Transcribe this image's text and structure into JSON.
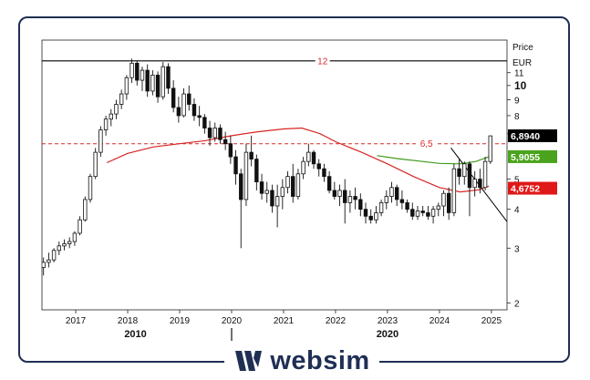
{
  "chart_data": {
    "type": "candlestick",
    "y_axis": {
      "label_top": "Price",
      "unit": "EUR",
      "scale": "log",
      "ylim": [
        1.9,
        14.0
      ],
      "ticks": [
        2,
        3,
        4,
        5,
        7,
        8,
        9,
        10,
        11
      ],
      "bold_tick": 10
    },
    "x_axis": {
      "year_ticks": [
        "2017",
        "2018",
        "2019",
        "2020",
        "2021",
        "2022",
        "2023",
        "2024",
        "2025"
      ],
      "decade_labels": [
        "2010",
        "2020"
      ],
      "xlim": [
        2016.35,
        2025.3
      ]
    },
    "reference_lines": [
      {
        "label": "12",
        "value": 12.0,
        "color": "#000000",
        "style": "solid"
      },
      {
        "label": "6,5",
        "value": 6.5,
        "color": "#d92a2a",
        "style": "dashed"
      }
    ],
    "price_badges": [
      {
        "label": "6,8940",
        "value": 6.894,
        "color": "#000000",
        "text_color": "#ffffff"
      },
      {
        "label": "5,9055",
        "value": 5.9055,
        "color": "#4aa31c",
        "text_color": "#ffffff"
      },
      {
        "label": "4,6752",
        "value": 4.6752,
        "color": "#e01818",
        "text_color": "#ffffff"
      }
    ],
    "series": [
      {
        "kind": "moving_average_long",
        "color": "#d82525",
        "points": [
          [
            2017.6,
            5.65
          ],
          [
            2018.0,
            6.05
          ],
          [
            2018.5,
            6.35
          ],
          [
            2019.0,
            6.5
          ],
          [
            2019.5,
            6.65
          ],
          [
            2020.0,
            6.9
          ],
          [
            2020.5,
            7.1
          ],
          [
            2021.0,
            7.25
          ],
          [
            2021.35,
            7.3
          ],
          [
            2021.7,
            7.0
          ],
          [
            2022.0,
            6.6
          ],
          [
            2022.5,
            6.1
          ],
          [
            2023.0,
            5.6
          ],
          [
            2023.5,
            5.1
          ],
          [
            2024.0,
            4.7
          ],
          [
            2024.4,
            4.55
          ],
          [
            2024.75,
            4.62
          ],
          [
            2024.95,
            4.75
          ]
        ]
      },
      {
        "kind": "moving_average_short",
        "color": "#3f9a1a",
        "points": [
          [
            2022.8,
            5.95
          ],
          [
            2023.2,
            5.82
          ],
          [
            2023.6,
            5.72
          ],
          [
            2024.0,
            5.62
          ],
          [
            2024.4,
            5.6
          ],
          [
            2024.7,
            5.7
          ],
          [
            2024.95,
            5.9
          ]
        ]
      },
      {
        "kind": "trendline",
        "color": "#000000",
        "points": [
          [
            2024.22,
            6.3
          ],
          [
            2025.3,
            3.65
          ]
        ]
      }
    ],
    "candles": [
      [
        2016.38,
        2.6,
        2.8,
        2.45,
        2.7
      ],
      [
        2016.48,
        2.7,
        2.9,
        2.6,
        2.75
      ],
      [
        2016.58,
        2.75,
        3.0,
        2.7,
        2.95
      ],
      [
        2016.68,
        2.95,
        3.15,
        2.85,
        3.05
      ],
      [
        2016.78,
        3.05,
        3.2,
        2.95,
        3.1
      ],
      [
        2016.88,
        3.1,
        3.25,
        3.0,
        3.15
      ],
      [
        2016.98,
        3.15,
        3.4,
        3.05,
        3.35
      ],
      [
        2017.08,
        3.35,
        3.8,
        3.3,
        3.7
      ],
      [
        2017.18,
        3.7,
        4.4,
        3.65,
        4.3
      ],
      [
        2017.28,
        4.3,
        5.2,
        4.2,
        5.1
      ],
      [
        2017.38,
        5.1,
        6.3,
        5.0,
        6.1
      ],
      [
        2017.48,
        6.1,
        7.4,
        5.9,
        7.2
      ],
      [
        2017.58,
        7.2,
        8.0,
        6.9,
        7.8
      ],
      [
        2017.68,
        7.8,
        8.4,
        7.4,
        8.1
      ],
      [
        2017.78,
        8.1,
        9.0,
        7.8,
        8.7
      ],
      [
        2017.88,
        8.7,
        9.7,
        8.4,
        9.4
      ],
      [
        2017.98,
        9.4,
        10.8,
        9.0,
        10.6
      ],
      [
        2018.08,
        10.6,
        12.2,
        10.2,
        11.8
      ],
      [
        2018.18,
        11.8,
        12.0,
        10.0,
        10.4
      ],
      [
        2018.28,
        10.4,
        11.5,
        9.6,
        11.2
      ],
      [
        2018.38,
        11.2,
        11.7,
        9.2,
        9.6
      ],
      [
        2018.48,
        9.6,
        11.2,
        9.3,
        10.8
      ],
      [
        2018.58,
        10.8,
        11.1,
        8.8,
        9.2
      ],
      [
        2018.68,
        9.2,
        11.9,
        9.0,
        11.5
      ],
      [
        2018.78,
        11.5,
        11.8,
        9.4,
        9.8
      ],
      [
        2018.88,
        9.8,
        10.4,
        8.2,
        8.5
      ],
      [
        2018.98,
        8.5,
        9.2,
        7.6,
        8.0
      ],
      [
        2019.08,
        8.0,
        9.8,
        7.9,
        9.4
      ],
      [
        2019.18,
        9.4,
        10.0,
        8.3,
        8.7
      ],
      [
        2019.28,
        8.7,
        9.1,
        7.7,
        8.0
      ],
      [
        2019.38,
        8.0,
        8.6,
        7.4,
        7.9
      ],
      [
        2019.48,
        7.9,
        8.1,
        7.0,
        7.3
      ],
      [
        2019.58,
        7.3,
        7.7,
        6.4,
        6.8
      ],
      [
        2019.68,
        6.8,
        7.6,
        6.6,
        7.3
      ],
      [
        2019.78,
        7.3,
        7.5,
        6.5,
        6.7
      ],
      [
        2019.88,
        6.7,
        7.1,
        6.2,
        6.5
      ],
      [
        2019.98,
        6.5,
        6.9,
        5.6,
        5.9
      ],
      [
        2020.08,
        5.9,
        6.2,
        4.8,
        5.2
      ],
      [
        2020.18,
        5.2,
        5.4,
        3.0,
        4.3
      ],
      [
        2020.28,
        4.3,
        6.5,
        4.1,
        6.1
      ],
      [
        2020.38,
        6.1,
        6.9,
        5.5,
        5.8
      ],
      [
        2020.48,
        5.8,
        6.0,
        4.6,
        4.9
      ],
      [
        2020.58,
        4.9,
        5.2,
        4.3,
        4.5
      ],
      [
        2020.68,
        4.5,
        4.9,
        4.2,
        4.6
      ],
      [
        2020.78,
        4.6,
        4.8,
        3.9,
        4.1
      ],
      [
        2020.88,
        4.1,
        4.8,
        3.5,
        4.4
      ],
      [
        2020.98,
        4.4,
        5.0,
        4.0,
        4.7
      ],
      [
        2021.08,
        4.7,
        5.3,
        4.5,
        5.1
      ],
      [
        2021.18,
        5.1,
        5.6,
        4.2,
        4.4
      ],
      [
        2021.28,
        4.4,
        5.4,
        4.3,
        5.2
      ],
      [
        2021.38,
        5.2,
        5.9,
        5.0,
        5.7
      ],
      [
        2021.48,
        5.7,
        6.5,
        5.5,
        6.1
      ],
      [
        2021.58,
        6.1,
        6.2,
        5.4,
        5.6
      ],
      [
        2021.68,
        5.6,
        5.8,
        5.1,
        5.4
      ],
      [
        2021.78,
        5.4,
        5.6,
        4.9,
        5.1
      ],
      [
        2021.88,
        5.1,
        5.3,
        4.5,
        4.6
      ],
      [
        2021.98,
        4.6,
        4.9,
        4.3,
        4.4
      ],
      [
        2022.08,
        4.4,
        4.8,
        4.1,
        4.6
      ],
      [
        2022.18,
        4.6,
        5.0,
        3.6,
        4.2
      ],
      [
        2022.28,
        4.2,
        4.6,
        3.9,
        4.4
      ],
      [
        2022.38,
        4.4,
        4.7,
        4.0,
        4.3
      ],
      [
        2022.48,
        4.3,
        4.5,
        3.8,
        4.0
      ],
      [
        2022.58,
        4.0,
        4.2,
        3.6,
        3.8
      ],
      [
        2022.68,
        3.8,
        4.0,
        3.6,
        3.7
      ],
      [
        2022.78,
        3.7,
        4.1,
        3.6,
        3.9
      ],
      [
        2022.88,
        3.9,
        4.3,
        3.8,
        4.2
      ],
      [
        2022.98,
        4.2,
        4.6,
        4.0,
        4.4
      ],
      [
        2023.08,
        4.4,
        4.9,
        4.2,
        4.7
      ],
      [
        2023.18,
        4.7,
        4.8,
        4.1,
        4.3
      ],
      [
        2023.28,
        4.3,
        4.6,
        4.0,
        4.2
      ],
      [
        2023.38,
        4.2,
        4.3,
        3.9,
        4.0
      ],
      [
        2023.48,
        4.0,
        4.2,
        3.7,
        3.8
      ],
      [
        2023.58,
        3.8,
        4.1,
        3.7,
        3.95
      ],
      [
        2023.68,
        3.95,
        4.1,
        3.8,
        3.9
      ],
      [
        2023.78,
        3.9,
        4.1,
        3.7,
        3.8
      ],
      [
        2023.88,
        3.8,
        4.1,
        3.6,
        4.0
      ],
      [
        2023.98,
        4.0,
        4.2,
        3.8,
        4.1
      ],
      [
        2024.08,
        4.1,
        4.6,
        3.8,
        4.5
      ],
      [
        2024.18,
        4.5,
        4.7,
        3.7,
        3.9
      ],
      [
        2024.28,
        3.9,
        5.6,
        3.8,
        5.4
      ],
      [
        2024.38,
        5.4,
        5.8,
        4.8,
        5.1
      ],
      [
        2024.48,
        5.1,
        5.7,
        4.8,
        5.6
      ],
      [
        2024.58,
        5.6,
        5.7,
        3.8,
        4.7
      ],
      [
        2024.68,
        4.7,
        5.3,
        4.4,
        5.0
      ],
      [
        2024.78,
        5.0,
        5.4,
        4.5,
        4.7
      ],
      [
        2024.88,
        4.7,
        5.9,
        4.6,
        5.7
      ],
      [
        2024.98,
        5.7,
        6.9,
        5.6,
        6.89
      ]
    ]
  }
}
